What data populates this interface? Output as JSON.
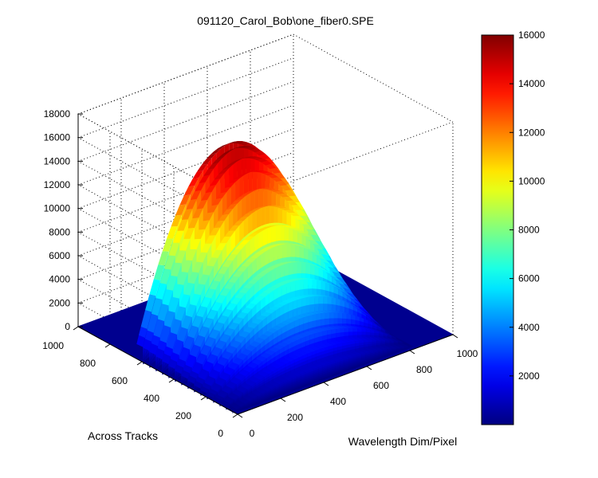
{
  "chart_data": {
    "type": "surface3d",
    "title": "091120_Carol_Bob\\one_fiber0.SPE",
    "xlabel": "Wavelength Dim/Pixel",
    "ylabel": "Across Tracks",
    "zlabel": "",
    "xlim": [
      0,
      1000
    ],
    "ylim": [
      0,
      1000
    ],
    "zlim": [
      0,
      18000
    ],
    "x_ticks": [
      "0",
      "200",
      "400",
      "600",
      "800",
      "1000"
    ],
    "y_ticks": [
      "0",
      "200",
      "400",
      "600",
      "800",
      "1000"
    ],
    "z_ticks": [
      "0",
      "2000",
      "4000",
      "6000",
      "8000",
      "10000",
      "12000",
      "14000",
      "16000",
      "18000"
    ],
    "colorbar": {
      "range": [
        0,
        16000
      ],
      "ticks": [
        "2000",
        "4000",
        "6000",
        "8000",
        "10000",
        "12000",
        "14000",
        "16000"
      ],
      "colormap": "jet"
    },
    "grid": true,
    "surface": {
      "description_free": true,
      "x_extent": [
        0,
        1000
      ],
      "active_y_range": [
        0,
        600
      ],
      "peak_value": 16000,
      "band_rows": [
        20,
        60,
        100,
        140,
        180,
        220,
        260,
        300,
        340,
        380,
        420,
        460,
        500,
        540,
        580
      ],
      "band_peak_values": [
        1200,
        2200,
        3200,
        4400,
        5600,
        6800,
        8000,
        9300,
        10600,
        12000,
        13200,
        14400,
        15300,
        15900,
        16000
      ],
      "band_center_x": 400,
      "band_halfwidth_x": 430
    }
  },
  "colors": {
    "background": "#ffffff",
    "floor": "#00008f",
    "grid": "#000000"
  }
}
